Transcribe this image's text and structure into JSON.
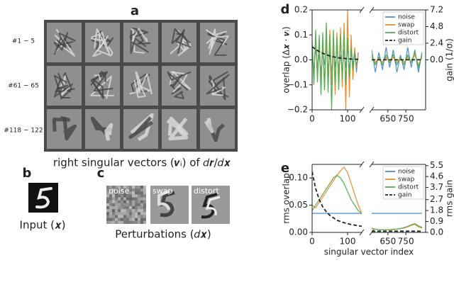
{
  "figure": {
    "panel_labels": [
      "a",
      "b",
      "c",
      "d",
      "e"
    ],
    "panel_a": {
      "row_labels": [
        "#1 − 5",
        "#61 − 65",
        "#118 − 122"
      ],
      "caption": "right singular vectors (𝒗ᵢ) of 𝑑𝒓/𝑑𝒙"
    },
    "panel_b": {
      "caption": "Input (𝒙)"
    },
    "panel_c": {
      "tiles": [
        "noise",
        "swap",
        "distort"
      ],
      "caption": "Perturbations (𝑑𝒙)"
    }
  },
  "chart_data": [
    {
      "type": "line",
      "ylabel": "overlap (Δ𝒙 · 𝒗ᵢ)",
      "y2label": "gain (1/σᵢ)",
      "xlim": [
        [
          0,
          140
        ],
        [
          560,
          860
        ]
      ],
      "xticks": [
        0,
        100,
        650,
        750
      ],
      "ylim": [
        -0.2,
        0.2
      ],
      "yticks": [
        {
          "value": -0.2,
          "label": "−0.2"
        },
        {
          "value": -0.1,
          "label": "−0.1"
        },
        {
          "value": 0,
          "label": "0.0"
        },
        0.1,
        0.2
      ],
      "y2lim": [
        -7.2,
        7.2
      ],
      "y2ticks": [
        {
          "value": 0,
          "label": "0.0"
        },
        2.4,
        4.8,
        7.2
      ],
      "legend": "upper right",
      "x": [
        0,
        5,
        10,
        15,
        20,
        25,
        30,
        35,
        40,
        45,
        50,
        55,
        60,
        65,
        70,
        75,
        80,
        85,
        90,
        95,
        100,
        105,
        110,
        115,
        120,
        125,
        130,
        560,
        580,
        600,
        620,
        640,
        660,
        680,
        700,
        720,
        740,
        760,
        780,
        800,
        820,
        840
      ],
      "series": [
        {
          "name": "noise",
          "color": "#4f8fcf",
          "values": [
            0.03,
            -0.04,
            0.05,
            -0.03,
            0.02,
            -0.05,
            0.04,
            -0.02,
            0.05,
            -0.04,
            0.03,
            -0.05,
            0.04,
            -0.03,
            0.05,
            -0.04,
            0.02,
            -0.05,
            0.04,
            -0.03,
            0.05,
            -0.04,
            0.03,
            -0.02,
            0.04,
            -0.05,
            0.03,
            0.04,
            -0.05,
            0.03,
            -0.04,
            0.05,
            -0.03,
            0.04,
            -0.05,
            0.02,
            -0.04,
            0.05,
            -0.03,
            0.04,
            -0.05,
            0.03
          ]
        },
        {
          "name": "swap",
          "color": "#f28c28",
          "values": [
            0.06,
            -0.08,
            0.1,
            -0.05,
            0.08,
            -0.1,
            0.07,
            -0.12,
            0.1,
            -0.08,
            0.12,
            -0.1,
            0.09,
            -0.14,
            0.11,
            -0.09,
            0.13,
            -0.11,
            0.15,
            -0.2,
            0.2,
            -0.15,
            0.1,
            -0.08,
            0.05,
            -0.03,
            0.02,
            0.01,
            -0.01,
            0.01,
            -0.01,
            0.01,
            -0.01,
            0.01,
            -0.01,
            0.01,
            -0.01,
            0.01,
            -0.01,
            0.02,
            -0.02,
            0.01
          ]
        },
        {
          "name": "distort",
          "color": "#4caf50",
          "values": [
            0.08,
            -0.1,
            0.12,
            -0.09,
            0.1,
            -0.14,
            0.11,
            -0.12,
            0.15,
            -0.13,
            0.1,
            -0.2,
            0.12,
            -0.1,
            0.09,
            -0.12,
            0.1,
            -0.08,
            0.11,
            -0.1,
            0.09,
            -0.07,
            0.05,
            -0.04,
            0.03,
            -0.02,
            0.01,
            0.02,
            -0.02,
            0.01,
            -0.02,
            0.02,
            -0.01,
            0.02,
            -0.02,
            0.01,
            -0.02,
            0.02,
            -0.01,
            0.03,
            -0.03,
            0.02
          ]
        },
        {
          "name": "gain",
          "color": "#222222",
          "dashed": true,
          "axis": "y2",
          "values": [
            1.9,
            1.7,
            1.5,
            1.35,
            1.2,
            1.05,
            0.95,
            0.85,
            0.75,
            0.65,
            0.58,
            0.5,
            0.45,
            0.4,
            0.35,
            0.3,
            0.27,
            0.24,
            0.21,
            0.18,
            0.16,
            0.14,
            0.12,
            0.1,
            0.09,
            0.08,
            0.07,
            0.01,
            0.01,
            0.01,
            0.01,
            0.01,
            0.01,
            0.01,
            0.01,
            0.01,
            0.01,
            0.01,
            0.01,
            0.01,
            0.01,
            0.01
          ]
        }
      ]
    },
    {
      "type": "line",
      "ylabel": "rms overlap",
      "y2label": "rms gain",
      "xlabel": "singular vector index",
      "xlim": [
        [
          0,
          140
        ],
        [
          560,
          860
        ]
      ],
      "xticks": [
        0,
        100,
        650,
        750
      ],
      "ylim": [
        0,
        0.125
      ],
      "yticks": [
        {
          "value": 0,
          "label": "0.00"
        },
        0.05,
        {
          "value": 0.1,
          "label": "0.10"
        }
      ],
      "y2lim": [
        0,
        5.6
      ],
      "y2ticks": [
        {
          "value": 0,
          "label": "0.0"
        },
        0.9,
        1.8,
        2.7,
        3.7,
        4.6,
        5.5
      ],
      "legend": "upper right",
      "x": [
        0,
        10,
        20,
        30,
        40,
        50,
        60,
        70,
        80,
        90,
        100,
        110,
        120,
        130,
        140,
        560,
        580,
        600,
        620,
        640,
        660,
        680,
        700,
        720,
        740,
        760,
        780,
        800,
        820,
        840
      ],
      "series": [
        {
          "name": "noise",
          "color": "#4f8fcf",
          "values": [
            0.035,
            0.035,
            0.035,
            0.035,
            0.035,
            0.035,
            0.035,
            0.035,
            0.035,
            0.035,
            0.035,
            0.035,
            0.035,
            0.035,
            0.035,
            0.035,
            0.035,
            0.035,
            0.035,
            0.035,
            0.035,
            0.035,
            0.035,
            0.035,
            0.035,
            0.035,
            0.035,
            0.035,
            0.035,
            0.035
          ]
        },
        {
          "name": "swap",
          "color": "#f28c28",
          "values": [
            0.05,
            0.045,
            0.055,
            0.065,
            0.075,
            0.085,
            0.095,
            0.105,
            0.113,
            0.12,
            0.11,
            0.09,
            0.07,
            0.05,
            0.035,
            0.008,
            0.006,
            0.005,
            0.005,
            0.005,
            0.005,
            0.005,
            0.006,
            0.007,
            0.008,
            0.01,
            0.013,
            0.015,
            0.01,
            0.008
          ]
        },
        {
          "name": "distort",
          "color": "#4caf50",
          "values": [
            0.04,
            0.05,
            0.06,
            0.07,
            0.08,
            0.09,
            0.1,
            0.105,
            0.1,
            0.09,
            0.075,
            0.06,
            0.05,
            0.04,
            0.035,
            0.007,
            0.006,
            0.005,
            0.005,
            0.005,
            0.005,
            0.006,
            0.006,
            0.007,
            0.009,
            0.011,
            0.014,
            0.016,
            0.012,
            0.009
          ]
        },
        {
          "name": "gain",
          "color": "#222222",
          "dashed": true,
          "axis": "y2",
          "values": [
            5.0,
            3.6,
            2.7,
            2.1,
            1.7,
            1.4,
            1.2,
            1.0,
            0.9,
            0.8,
            0.72,
            0.65,
            0.6,
            0.55,
            0.5,
            0.1,
            0.1,
            0.1,
            0.1,
            0.1,
            0.1,
            0.1,
            0.1,
            0.1,
            0.1,
            0.1,
            0.1,
            0.1,
            0.1,
            0.1
          ]
        }
      ]
    }
  ]
}
